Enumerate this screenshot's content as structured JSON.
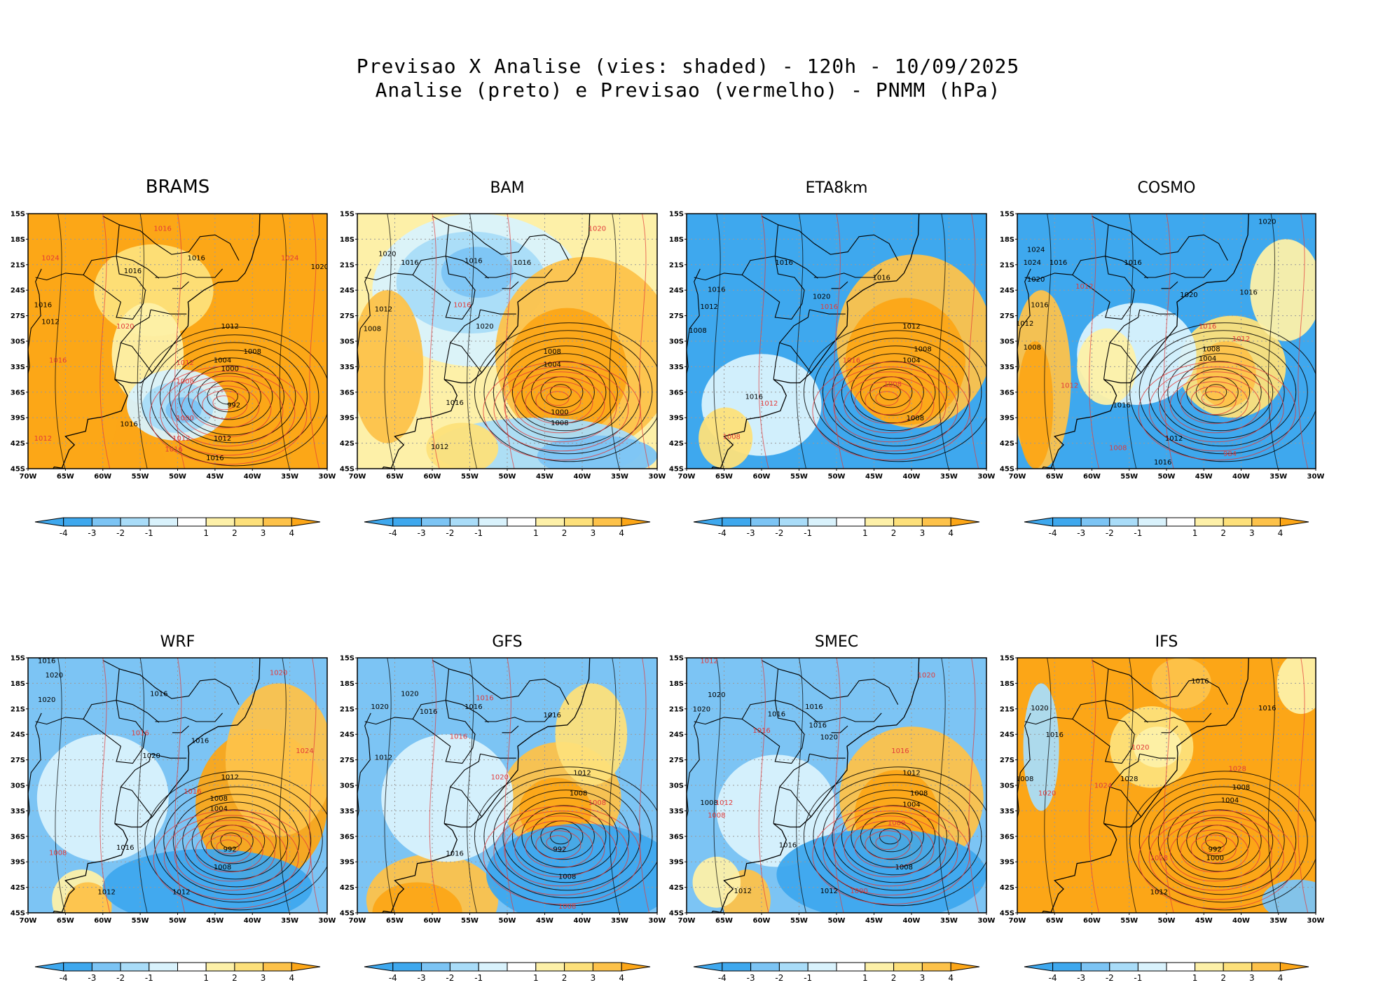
{
  "title": {
    "line1": "Previsao X Analise (vies: shaded) - 120h - 10/09/2025",
    "line2": "Analise (preto) e Previsao (vermelho) - PNMM (hPa)"
  },
  "colors": {
    "bias_neg4": "#3ea8ee",
    "bias_neg3": "#7cc4f4",
    "bias_neg2": "#a9dcf8",
    "bias_neg1": "#d9f2fc",
    "bias_zero": "#ffffff",
    "bias_pos1": "#fdf0a8",
    "bias_pos2": "#fde07a",
    "bias_pos3": "#fdc24a",
    "bias_pos4": "#fca617",
    "analysis_contour": "#000000",
    "forecast_contour": "#e23a3a",
    "grid": "#9a9a9a"
  },
  "map": {
    "lat_labels": [
      "15S",
      "18S",
      "21S",
      "24S",
      "27S",
      "30S",
      "33S",
      "36S",
      "39S",
      "42S",
      "45S"
    ],
    "lon_labels": [
      "70W",
      "65W",
      "60W",
      "55W",
      "50W",
      "45W",
      "40W",
      "35W",
      "30W"
    ]
  },
  "colorbar": {
    "labels": [
      "-4",
      "-3",
      "-2",
      "-1",
      "1",
      "2",
      "3",
      "4"
    ]
  },
  "panels": [
    {
      "id": "brams",
      "name": "BRAMS",
      "bias": "warm",
      "contour_labels": [
        {
          "t": "1016",
          "c": "k",
          "lon": -47.5,
          "lat": -20.5
        },
        {
          "t": "1016",
          "c": "k",
          "lon": -56,
          "lat": -22
        },
        {
          "t": "1016",
          "c": "k",
          "lon": -68,
          "lat": -26
        },
        {
          "t": "1012",
          "c": "k",
          "lon": -67,
          "lat": -28
        },
        {
          "t": "1024",
          "c": "r",
          "lon": -67,
          "lat": -20.5
        },
        {
          "t": "1024",
          "c": "r",
          "lon": -35,
          "lat": -20.5
        },
        {
          "t": "1020",
          "c": "k",
          "lon": -31,
          "lat": -21.5
        },
        {
          "t": "1016",
          "c": "r",
          "lon": -52,
          "lat": -17
        },
        {
          "t": "1020",
          "c": "r",
          "lon": -57,
          "lat": -28.5
        },
        {
          "t": "1016",
          "c": "r",
          "lon": -66,
          "lat": -32.5
        },
        {
          "t": "1012",
          "c": "k",
          "lon": -43,
          "lat": -28.5
        },
        {
          "t": "1008",
          "c": "k",
          "lon": -40,
          "lat": -31.5
        },
        {
          "t": "1004",
          "c": "k",
          "lon": -44,
          "lat": -32.5
        },
        {
          "t": "1000",
          "c": "k",
          "lon": -43,
          "lat": -33.5
        },
        {
          "t": "1012",
          "c": "r",
          "lon": -49,
          "lat": -32.8
        },
        {
          "t": "1008",
          "c": "r",
          "lon": -49,
          "lat": -35
        },
        {
          "t": "992",
          "c": "k",
          "lon": -42.5,
          "lat": -37.8
        },
        {
          "t": "1000",
          "c": "r",
          "lon": -49,
          "lat": -39.3
        },
        {
          "t": "1016",
          "c": "k",
          "lon": -56.5,
          "lat": -40
        },
        {
          "t": "1012",
          "c": "r",
          "lon": -49.5,
          "lat": -41.7
        },
        {
          "t": "1012",
          "c": "k",
          "lon": -44,
          "lat": -41.7
        },
        {
          "t": "1016",
          "c": "r",
          "lon": -50.5,
          "lat": -43
        },
        {
          "t": "1016",
          "c": "k",
          "lon": -45,
          "lat": -44
        },
        {
          "t": "1012",
          "c": "r",
          "lon": -68,
          "lat": -41.7
        }
      ]
    },
    {
      "id": "bam",
      "name": "BAM",
      "bias": "mixed",
      "contour_labels": [
        {
          "t": "1020",
          "c": "r",
          "lon": -38,
          "lat": -17
        },
        {
          "t": "1020",
          "c": "k",
          "lon": -66,
          "lat": -20
        },
        {
          "t": "1016",
          "c": "k",
          "lon": -63,
          "lat": -21
        },
        {
          "t": "1016",
          "c": "k",
          "lon": -54.5,
          "lat": -20.8
        },
        {
          "t": "1016",
          "c": "k",
          "lon": -48,
          "lat": -21
        },
        {
          "t": "1012",
          "c": "k",
          "lon": -66.5,
          "lat": -26.5
        },
        {
          "t": "1008",
          "c": "k",
          "lon": -68,
          "lat": -28.8
        },
        {
          "t": "1016",
          "c": "r",
          "lon": -56,
          "lat": -26
        },
        {
          "t": "1020",
          "c": "k",
          "lon": -53,
          "lat": -28.5
        },
        {
          "t": "1008",
          "c": "k",
          "lon": -44,
          "lat": -31.5
        },
        {
          "t": "1004",
          "c": "k",
          "lon": -44,
          "lat": -33
        },
        {
          "t": "1016",
          "c": "k",
          "lon": -57,
          "lat": -37.5
        },
        {
          "t": "1000",
          "c": "k",
          "lon": -43,
          "lat": -38.6
        },
        {
          "t": "1008",
          "c": "k",
          "lon": -43,
          "lat": -39.9
        },
        {
          "t": "1012",
          "c": "k",
          "lon": -59,
          "lat": -42.7
        }
      ]
    },
    {
      "id": "eta8km",
      "name": "ETA8km",
      "bias": "cold",
      "contour_labels": [
        {
          "t": "1016",
          "c": "k",
          "lon": -57,
          "lat": -21
        },
        {
          "t": "1016",
          "c": "k",
          "lon": -66,
          "lat": -24.2
        },
        {
          "t": "1012",
          "c": "k",
          "lon": -67,
          "lat": -26.2
        },
        {
          "t": "1008",
          "c": "k",
          "lon": -68.5,
          "lat": -29
        },
        {
          "t": "1020",
          "c": "k",
          "lon": -52,
          "lat": -25
        },
        {
          "t": "1016",
          "c": "k",
          "lon": -44,
          "lat": -22.8
        },
        {
          "t": "1016",
          "c": "r",
          "lon": -51,
          "lat": -26.2
        },
        {
          "t": "1012",
          "c": "k",
          "lon": -40,
          "lat": -28.5
        },
        {
          "t": "1008",
          "c": "k",
          "lon": -38.5,
          "lat": -31.2
        },
        {
          "t": "1004",
          "c": "k",
          "lon": -40,
          "lat": -32.5
        },
        {
          "t": "1016",
          "c": "r",
          "lon": -48,
          "lat": -32.5
        },
        {
          "t": "1008",
          "c": "r",
          "lon": -42.5,
          "lat": -35.3
        },
        {
          "t": "1016",
          "c": "k",
          "lon": -61,
          "lat": -36.8
        },
        {
          "t": "1012",
          "c": "r",
          "lon": -59,
          "lat": -37.6
        },
        {
          "t": "1008",
          "c": "k",
          "lon": -39.5,
          "lat": -39.3
        },
        {
          "t": "1008",
          "c": "r",
          "lon": -64,
          "lat": -41.5
        }
      ]
    },
    {
      "id": "cosmo",
      "name": "COSMO",
      "bias": "mixed",
      "contour_labels": [
        {
          "t": "1020",
          "c": "k",
          "lon": -36.5,
          "lat": -16.2
        },
        {
          "t": "1024",
          "c": "k",
          "lon": -67.5,
          "lat": -19.5
        },
        {
          "t": "1024",
          "c": "k",
          "lon": -68,
          "lat": -21
        },
        {
          "t": "1016",
          "c": "k",
          "lon": -64.5,
          "lat": -21
        },
        {
          "t": "1016",
          "c": "k",
          "lon": -54.5,
          "lat": -21
        },
        {
          "t": "1020",
          "c": "k",
          "lon": -67.5,
          "lat": -23
        },
        {
          "t": "1012",
          "c": "r",
          "lon": -61,
          "lat": -23.8
        },
        {
          "t": "1020",
          "c": "k",
          "lon": -47,
          "lat": -24.8
        },
        {
          "t": "1016",
          "c": "k",
          "lon": -39,
          "lat": -24.5
        },
        {
          "t": "1016",
          "c": "k",
          "lon": -67,
          "lat": -26
        },
        {
          "t": "1012",
          "c": "k",
          "lon": -69,
          "lat": -28.2
        },
        {
          "t": "1008",
          "c": "k",
          "lon": -68,
          "lat": -31
        },
        {
          "t": "1016",
          "c": "r",
          "lon": -44.5,
          "lat": -28.5
        },
        {
          "t": "1012",
          "c": "r",
          "lon": -40,
          "lat": -30
        },
        {
          "t": "1008",
          "c": "k",
          "lon": -44,
          "lat": -31.2
        },
        {
          "t": "1004",
          "c": "k",
          "lon": -44.5,
          "lat": -32.3
        },
        {
          "t": "1012",
          "c": "r",
          "lon": -63,
          "lat": -35.5
        },
        {
          "t": "1016",
          "c": "k",
          "lon": -56,
          "lat": -37.8
        },
        {
          "t": "1012",
          "c": "k",
          "lon": -49,
          "lat": -41.7
        },
        {
          "t": "1008",
          "c": "r",
          "lon": -56.5,
          "lat": -42.8
        },
        {
          "t": "1016",
          "c": "k",
          "lon": -50.5,
          "lat": -44.5
        },
        {
          "t": "984",
          "c": "r",
          "lon": -41.5,
          "lat": -43.5
        }
      ]
    },
    {
      "id": "wrf",
      "name": "WRF",
      "bias": "mixed",
      "contour_labels": [
        {
          "t": "1016",
          "c": "k",
          "lon": -67.5,
          "lat": -15.6
        },
        {
          "t": "1020",
          "c": "k",
          "lon": -66.5,
          "lat": -17.3
        },
        {
          "t": "1016",
          "c": "k",
          "lon": -52.5,
          "lat": -19.5
        },
        {
          "t": "1020",
          "c": "r",
          "lon": -36.5,
          "lat": -17
        },
        {
          "t": "1016",
          "c": "r",
          "lon": -55,
          "lat": -24.1
        },
        {
          "t": "1020",
          "c": "k",
          "lon": -67.5,
          "lat": -20.2
        },
        {
          "t": "1016",
          "c": "k",
          "lon": -47,
          "lat": -25
        },
        {
          "t": "1020",
          "c": "k",
          "lon": -53.5,
          "lat": -26.8
        },
        {
          "t": "1024",
          "c": "r",
          "lon": -33,
          "lat": -26.2
        },
        {
          "t": "1016",
          "c": "r",
          "lon": -48,
          "lat": -31
        },
        {
          "t": "1012",
          "c": "k",
          "lon": -43,
          "lat": -29.3
        },
        {
          "t": "1008",
          "c": "k",
          "lon": -44.5,
          "lat": -31.8
        },
        {
          "t": "1004",
          "c": "k",
          "lon": -44.5,
          "lat": -33
        },
        {
          "t": "1016",
          "c": "k",
          "lon": -57,
          "lat": -37.6
        },
        {
          "t": "992",
          "c": "k",
          "lon": -43,
          "lat": -37.8
        },
        {
          "t": "1008",
          "c": "r",
          "lon": -66,
          "lat": -38.2
        },
        {
          "t": "1008",
          "c": "k",
          "lon": -44,
          "lat": -39.9
        },
        {
          "t": "1012",
          "c": "k",
          "lon": -49.5,
          "lat": -42.8
        },
        {
          "t": "1012",
          "c": "k",
          "lon": -59.5,
          "lat": -42.8
        }
      ]
    },
    {
      "id": "gfs",
      "name": "GFS",
      "bias": "mixed",
      "contour_labels": [
        {
          "t": "1020",
          "c": "k",
          "lon": -63,
          "lat": -19.5
        },
        {
          "t": "1020",
          "c": "k",
          "lon": -67,
          "lat": -21
        },
        {
          "t": "1016",
          "c": "k",
          "lon": -60.5,
          "lat": -21.6
        },
        {
          "t": "1016",
          "c": "k",
          "lon": -54.5,
          "lat": -21
        },
        {
          "t": "1016",
          "c": "r",
          "lon": -53,
          "lat": -20
        },
        {
          "t": "1016",
          "c": "k",
          "lon": -44,
          "lat": -22
        },
        {
          "t": "1016",
          "c": "r",
          "lon": -56.5,
          "lat": -24.5
        },
        {
          "t": "1012",
          "c": "k",
          "lon": -66.5,
          "lat": -27
        },
        {
          "t": "1020",
          "c": "r",
          "lon": -51,
          "lat": -29.3
        },
        {
          "t": "1012",
          "c": "k",
          "lon": -40,
          "lat": -28.8
        },
        {
          "t": "1008",
          "c": "k",
          "lon": -40.5,
          "lat": -31.2
        },
        {
          "t": "1008",
          "c": "r",
          "lon": -38,
          "lat": -32.3
        },
        {
          "t": "992",
          "c": "k",
          "lon": -43,
          "lat": -37.8
        },
        {
          "t": "1016",
          "c": "k",
          "lon": -57,
          "lat": -38.3
        },
        {
          "t": "1008",
          "c": "k",
          "lon": -42,
          "lat": -41
        },
        {
          "t": "1008",
          "c": "r",
          "lon": -42,
          "lat": -44.5
        }
      ]
    },
    {
      "id": "smec",
      "name": "SMEC",
      "bias": "mixed",
      "contour_labels": [
        {
          "t": "1012",
          "c": "r",
          "lon": -67,
          "lat": -15.6
        },
        {
          "t": "1020",
          "c": "k",
          "lon": -66,
          "lat": -19.6
        },
        {
          "t": "1020",
          "c": "r",
          "lon": -38,
          "lat": -17.3
        },
        {
          "t": "1020",
          "c": "k",
          "lon": -68,
          "lat": -21.3
        },
        {
          "t": "1016",
          "c": "k",
          "lon": -58,
          "lat": -21.9
        },
        {
          "t": "1016",
          "c": "k",
          "lon": -53,
          "lat": -21
        },
        {
          "t": "1016",
          "c": "r",
          "lon": -60,
          "lat": -23.8
        },
        {
          "t": "1016",
          "c": "k",
          "lon": -52.5,
          "lat": -23.2
        },
        {
          "t": "1020",
          "c": "k",
          "lon": -51,
          "lat": -24.6
        },
        {
          "t": "1016",
          "c": "r",
          "lon": -41.5,
          "lat": -26.2
        },
        {
          "t": "1012",
          "c": "k",
          "lon": -40,
          "lat": -28.8
        },
        {
          "t": "1008",
          "c": "k",
          "lon": -39,
          "lat": -31.2
        },
        {
          "t": "1004",
          "c": "k",
          "lon": -40,
          "lat": -32.5
        },
        {
          "t": "1008",
          "c": "k",
          "lon": -67,
          "lat": -32.3
        },
        {
          "t": "1008",
          "c": "r",
          "lon": -66,
          "lat": -33.8
        },
        {
          "t": "1012",
          "c": "r",
          "lon": -65,
          "lat": -32.3
        },
        {
          "t": "1000",
          "c": "r",
          "lon": -42,
          "lat": -34.7
        },
        {
          "t": "1016",
          "c": "k",
          "lon": -56.5,
          "lat": -37.3
        },
        {
          "t": "1008",
          "c": "k",
          "lon": -41,
          "lat": -39.9
        },
        {
          "t": "1012",
          "c": "k",
          "lon": -51,
          "lat": -42.7
        },
        {
          "t": "1012",
          "c": "k",
          "lon": -62.5,
          "lat": -42.7
        },
        {
          "t": "1000",
          "c": "r",
          "lon": -47,
          "lat": -42.7
        }
      ]
    },
    {
      "id": "ifs",
      "name": "IFS",
      "bias": "warm",
      "contour_labels": [
        {
          "t": "1016",
          "c": "k",
          "lon": -45.5,
          "lat": -18
        },
        {
          "t": "1020",
          "c": "k",
          "lon": -67,
          "lat": -21.2
        },
        {
          "t": "1016",
          "c": "k",
          "lon": -65,
          "lat": -24.3
        },
        {
          "t": "1016",
          "c": "k",
          "lon": -36.5,
          "lat": -21.2
        },
        {
          "t": "1020",
          "c": "r",
          "lon": -53.5,
          "lat": -25.8
        },
        {
          "t": "1028",
          "c": "r",
          "lon": -40.5,
          "lat": -28.3
        },
        {
          "t": "1028",
          "c": "k",
          "lon": -55,
          "lat": -29.5
        },
        {
          "t": "1008",
          "c": "k",
          "lon": -69,
          "lat": -29.5
        },
        {
          "t": "1020",
          "c": "r",
          "lon": -66,
          "lat": -31.2
        },
        {
          "t": "1024",
          "c": "r",
          "lon": -58.5,
          "lat": -30.3
        },
        {
          "t": "1008",
          "c": "k",
          "lon": -40,
          "lat": -30.5
        },
        {
          "t": "1004",
          "c": "k",
          "lon": -41.5,
          "lat": -32
        },
        {
          "t": "992",
          "c": "k",
          "lon": -43.5,
          "lat": -37.8
        },
        {
          "t": "1000",
          "c": "k",
          "lon": -43.5,
          "lat": -38.8
        },
        {
          "t": "1028",
          "c": "r",
          "lon": -51,
          "lat": -38.8
        },
        {
          "t": "1012",
          "c": "k",
          "lon": -51,
          "lat": -42.8
        }
      ]
    }
  ]
}
